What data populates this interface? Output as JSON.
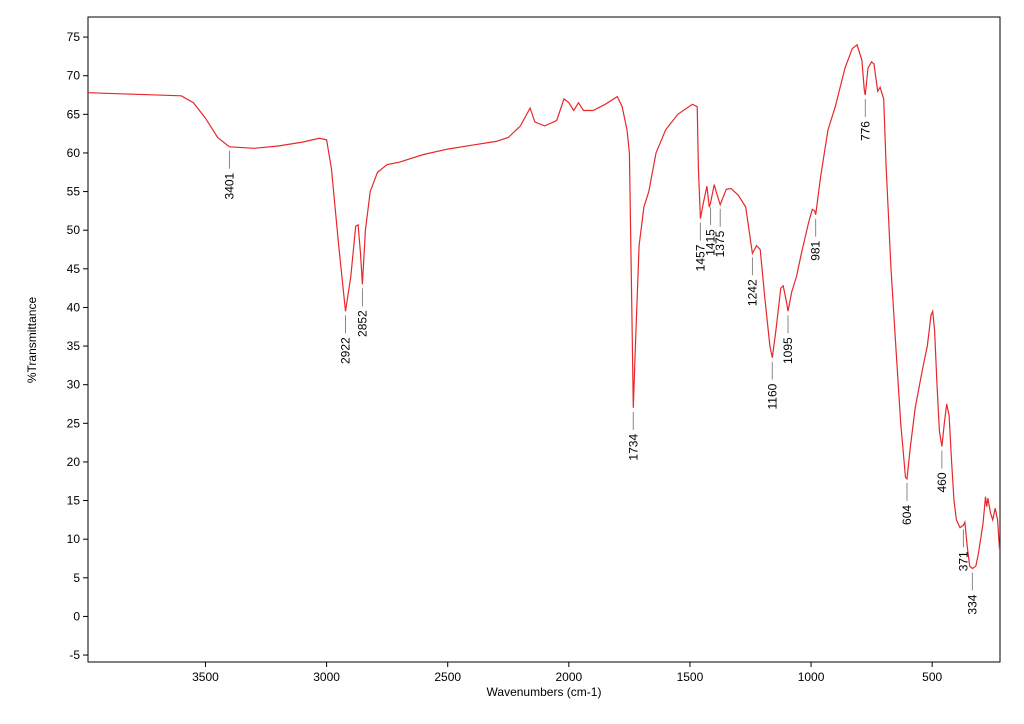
{
  "chart_data": {
    "type": "line",
    "xlabel": "Wavenumbers (cm-1)",
    "ylabel": "%Transmittance",
    "xlim": [
      3985,
      220
    ],
    "ylim": [
      -5.9,
      77.6
    ],
    "xticks": [
      3500,
      3000,
      2500,
      2000,
      1500,
      1000,
      500
    ],
    "yticks": [
      -5,
      0,
      5,
      10,
      15,
      20,
      25,
      30,
      35,
      40,
      45,
      50,
      55,
      60,
      65,
      70,
      75
    ],
    "color": "#e8272b",
    "x": [
      3985,
      3800,
      3600,
      3550,
      3500,
      3450,
      3401,
      3300,
      3200,
      3100,
      3030,
      3000,
      2980,
      2950,
      2922,
      2900,
      2880,
      2870,
      2860,
      2852,
      2840,
      2820,
      2790,
      2750,
      2700,
      2600,
      2500,
      2400,
      2300,
      2250,
      2200,
      2160,
      2140,
      2100,
      2050,
      2020,
      2000,
      1980,
      1960,
      1940,
      1900,
      1850,
      1800,
      1780,
      1760,
      1750,
      1740,
      1734,
      1725,
      1710,
      1690,
      1670,
      1640,
      1600,
      1550,
      1490,
      1470,
      1465,
      1457,
      1445,
      1430,
      1420,
      1415,
      1400,
      1390,
      1375,
      1350,
      1330,
      1300,
      1270,
      1242,
      1225,
      1210,
      1190,
      1170,
      1160,
      1145,
      1125,
      1115,
      1100,
      1095,
      1080,
      1060,
      1040,
      1010,
      995,
      985,
      981,
      960,
      930,
      900,
      860,
      830,
      810,
      790,
      780,
      776,
      765,
      750,
      740,
      725,
      715,
      700,
      690,
      670,
      650,
      630,
      610,
      604,
      590,
      570,
      540,
      520,
      505,
      498,
      490,
      480,
      470,
      460,
      450,
      440,
      430,
      420,
      410,
      400,
      385,
      371,
      365,
      355,
      345,
      334,
      320,
      310,
      300,
      290,
      280,
      275,
      270,
      260,
      250,
      240,
      230,
      222
    ],
    "values": [
      67.8,
      67.6,
      67.4,
      66.5,
      64.5,
      62,
      60.8,
      60.6,
      60.9,
      61.4,
      61.9,
      61.7,
      58,
      48,
      39.5,
      44,
      50.5,
      50.7,
      47,
      43,
      50,
      55,
      57.5,
      58.5,
      58.8,
      59.8,
      60.5,
      61,
      61.5,
      62,
      63.5,
      65.8,
      64,
      63.5,
      64.2,
      67,
      66.5,
      65.5,
      66.5,
      65.5,
      65.5,
      66.3,
      67.3,
      66,
      63,
      60,
      40,
      27,
      35,
      48,
      53,
      55,
      60,
      63,
      65,
      66.3,
      66,
      58,
      51.5,
      53.5,
      55.7,
      53,
      53.5,
      55.9,
      54.8,
      53.3,
      55.3,
      55.4,
      54.5,
      53,
      47,
      48,
      47.5,
      41,
      35,
      33.5,
      37,
      42.5,
      42.8,
      40.5,
      39.5,
      42,
      44,
      47,
      51,
      52.7,
      52.5,
      52,
      57,
      63,
      66,
      71,
      73.5,
      74,
      72,
      68,
      67.5,
      71,
      71.8,
      71.5,
      68,
      68.5,
      67,
      58,
      45,
      35,
      25,
      18,
      17.8,
      22,
      27,
      32,
      35,
      39,
      39.5,
      37,
      30,
      24,
      22,
      25,
      27.5,
      26,
      20,
      15,
      12.5,
      11.5,
      11.8,
      12.2,
      9,
      6.5,
      6.2,
      6.5,
      8,
      10,
      12,
      15.5,
      14.2,
      15.3,
      13.5,
      12.5,
      14,
      12.5,
      8.7
    ],
    "annotations": [
      3401,
      2922,
      2852,
      1734,
      1457,
      1415,
      1375,
      1242,
      1160,
      1095,
      981,
      776,
      604,
      460,
      371,
      334
    ]
  }
}
